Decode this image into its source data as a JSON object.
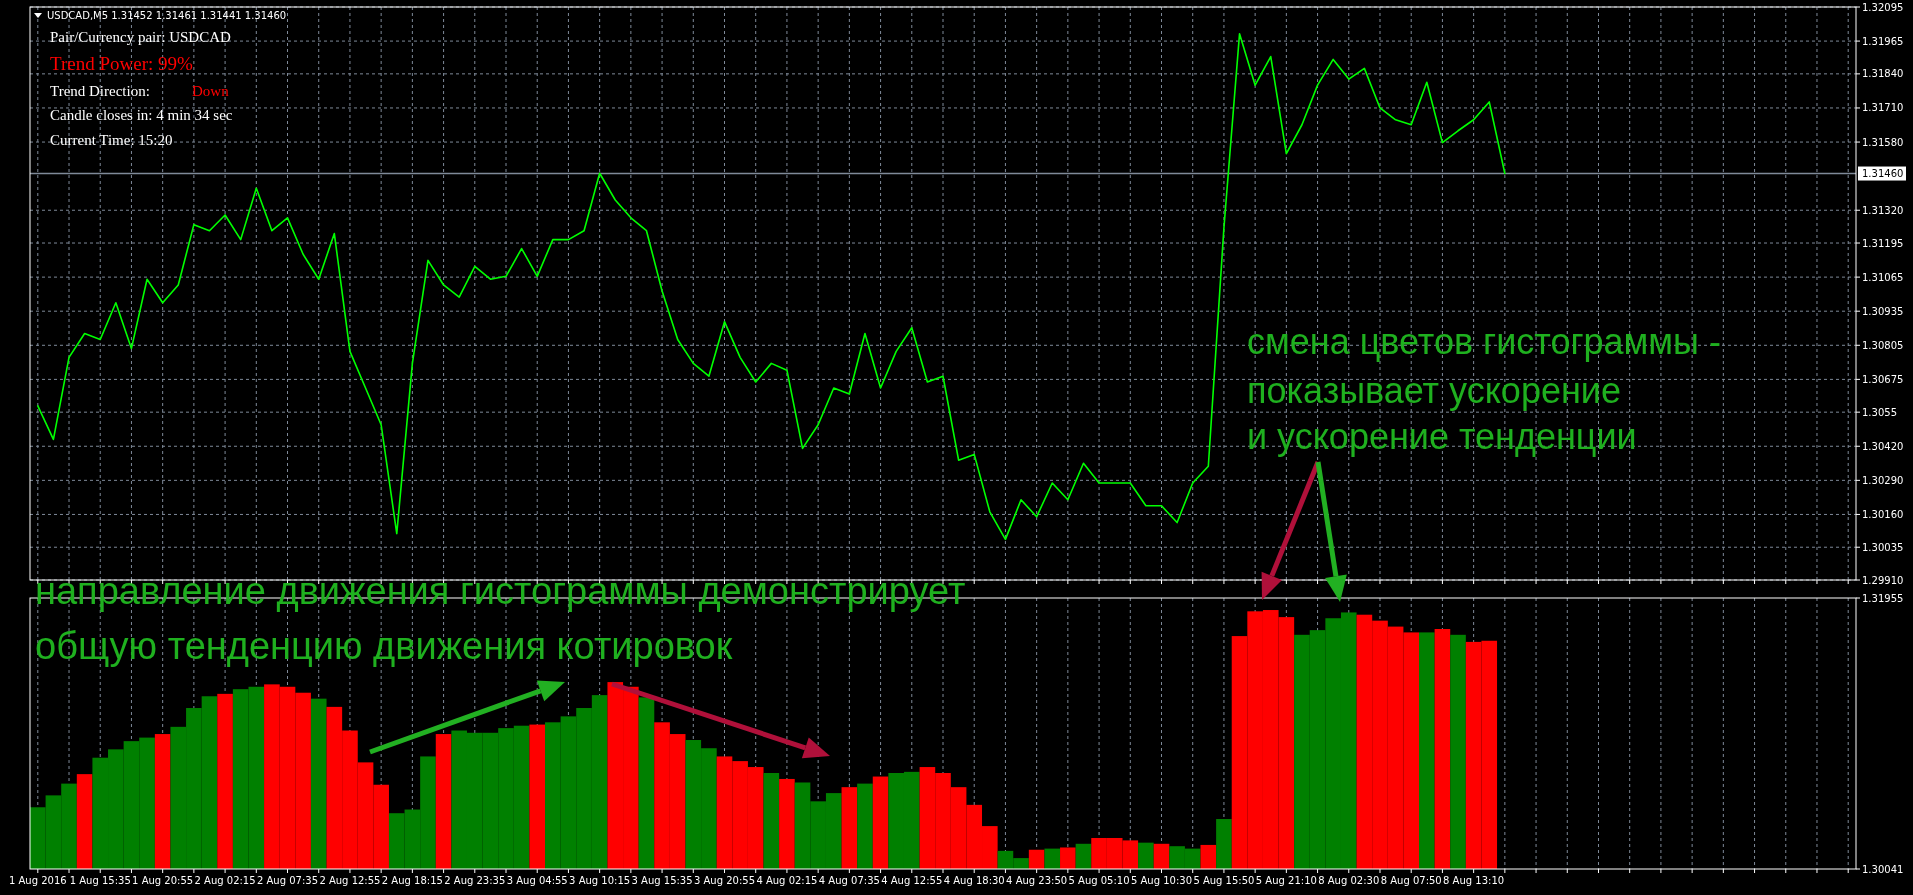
{
  "chart_data": [
    {
      "type": "line",
      "title": "USDCAD,M5  1.31452 1.31461 1.31441 1.31460",
      "annotations": [
        "Pair/Currency pair: USDCAD",
        "Trend Power: 99%",
        "Trend Direction:",
        "Down",
        "Candle closes in: 4 min 34 sec",
        "Current Time: 15:20",
        "направление движения гистограммы демонстрирует",
        "общую тенденцию движения котировок",
        "смена цветов гистограммы -",
        "показывает ускорение",
        "и ускорение тенденции"
      ],
      "categories": [
        null,
        null,
        null,
        null,
        null,
        null,
        null,
        null,
        null,
        null,
        null,
        null,
        null,
        null,
        null,
        null,
        null,
        null,
        null,
        null,
        null,
        null,
        null,
        null,
        null,
        null,
        null,
        null,
        null,
        null,
        null,
        null,
        null,
        null,
        null,
        null,
        null,
        null,
        null,
        null,
        null,
        null,
        null,
        null,
        null,
        null,
        null,
        null,
        null,
        null,
        null,
        null,
        null,
        null,
        null,
        null,
        null,
        null,
        null,
        null,
        null,
        null,
        null,
        null,
        null,
        null,
        null,
        null,
        null,
        null,
        null,
        null,
        null,
        null,
        null,
        null,
        null,
        null,
        null,
        null,
        null,
        null,
        null,
        null,
        null,
        null,
        null,
        null,
        null,
        null,
        null,
        null,
        null,
        null,
        null,
        null,
        null,
        null,
        null,
        null,
        null,
        null,
        null,
        null,
        null,
        null,
        null,
        null,
        null,
        null,
        null,
        null,
        null,
        null,
        null,
        null,
        null
      ],
      "series": [
        {
          "color": "#00ff00",
          "values": [
            1.30574,
            1.30446,
            1.30759,
            1.3085,
            1.30827,
            1.30967,
            1.30793,
            1.31057,
            1.30967,
            1.31035,
            1.31265,
            1.31242,
            1.31302,
            1.31208,
            1.31404,
            1.31242,
            1.31291,
            1.31152,
            1.31057,
            1.31231,
            1.30782,
            1.30642,
            1.30502,
            1.30087,
            1.30736,
            1.31129,
            1.31035,
            1.30989,
            1.31106,
            1.31057,
            1.31068,
            1.31174,
            1.31068,
            1.31208,
            1.31208,
            1.31242,
            1.31461,
            1.31359,
            1.31291,
            1.31242,
            1.31012,
            1.30827,
            1.30736,
            1.30687,
            1.30895,
            1.30759,
            1.30665,
            1.30736,
            1.3071,
            1.30412,
            1.30502,
            1.30642,
            1.30619,
            1.3085,
            1.30642,
            1.30782,
            1.30872,
            1.30665,
            1.30687,
            1.30367,
            1.30389,
            1.3017,
            1.30065,
            1.30216,
            1.30151,
            1.3028,
            1.30216,
            1.30355,
            1.3028,
            1.3028,
            1.3028,
            1.30193,
            1.30193,
            1.30129,
            1.3028,
            1.30344,
            1.31253,
            1.31993,
            1.31797,
            1.31906,
            1.31536,
            1.31646,
            1.31797,
            1.31895,
            1.3182,
            1.31861,
            1.3171,
            1.31665,
            1.31646,
            1.31808,
            1.31578,
            1.31623,
            1.31665,
            1.31733,
            1.3146,
            null,
            null,
            null,
            null,
            null,
            null,
            null,
            null,
            null,
            null,
            null,
            null,
            null,
            null,
            null,
            null,
            null,
            null,
            null,
            null,
            null,
            null
          ]
        }
      ],
      "ylim": [
        1.2991,
        1.32095
      ],
      "yticks": [
        1.32095,
        1.31965,
        {
          "value": 1.3184,
          "label": "1.31840"
        },
        {
          "value": 1.3171,
          "label": "1.31710"
        },
        {
          "value": 1.3158,
          "label": "1.31580"
        },
        {
          "value": 1.3132,
          "label": "1.31320"
        },
        1.31195,
        1.31065,
        1.30935,
        1.30805,
        1.30675,
        1.3055,
        {
          "value": 1.3042,
          "label": "1.30420"
        },
        {
          "value": 1.3029,
          "label": "1.30290"
        },
        {
          "value": 1.3016,
          "label": "1.30160"
        },
        1.30035,
        {
          "value": 1.2991,
          "label": "1.29910"
        }
      ],
      "ref_lines": [
        {
          "axis": "y",
          "value": 1.3146,
          "label": "1.31460",
          "color": "#7f8a99"
        }
      ],
      "tick_labels": "y",
      "grid": true
    },
    {
      "type": "bar",
      "categories": [
        "1 Aug 2016",
        null,
        null,
        null,
        "1 Aug 15:35",
        null,
        null,
        null,
        "1 Aug 20:55",
        null,
        null,
        null,
        "2 Aug 02:15",
        null,
        null,
        null,
        "2 Aug 07:35",
        null,
        null,
        null,
        "2 Aug 12:55",
        null,
        null,
        null,
        "2 Aug 18:15",
        null,
        null,
        null,
        "2 Aug 23:35",
        null,
        null,
        null,
        "3 Aug 04:55",
        null,
        null,
        null,
        "3 Aug 10:15",
        null,
        null,
        null,
        "3 Aug 15:35",
        null,
        null,
        null,
        "3 Aug 20:55",
        null,
        null,
        null,
        "4 Aug 02:15",
        null,
        null,
        null,
        "4 Aug 07:35",
        null,
        null,
        null,
        "4 Aug 12:55",
        null,
        null,
        null,
        "4 Aug 18:30",
        null,
        null,
        null,
        "4 Aug 23:50",
        null,
        null,
        null,
        "5 Aug 05:10",
        null,
        null,
        null,
        "5 Aug 10:30",
        null,
        null,
        null,
        "5 Aug 15:50",
        null,
        null,
        null,
        "5 Aug 21:10",
        null,
        null,
        null,
        "8 Aug 02:30",
        null,
        null,
        null,
        "8 Aug 07:50",
        null,
        null,
        null,
        "8 Aug 13:10",
        null,
        null,
        null,
        null,
        null,
        null,
        null,
        null,
        null,
        null,
        null,
        null,
        null,
        null,
        null,
        null,
        null,
        null,
        null,
        null,
        null,
        null,
        null,
        null
      ],
      "values": [
        1.30477,
        1.30561,
        1.30644,
        1.30711,
        1.30827,
        1.30886,
        1.30944,
        1.30969,
        1.30994,
        1.31045,
        1.31178,
        1.31261,
        1.31278,
        1.31311,
        1.31328,
        1.31345,
        1.31328,
        1.31286,
        1.31244,
        1.31186,
        1.31019,
        1.30794,
        1.30636,
        1.30435,
        1.30461,
        1.30836,
        1.30994,
        1.31019,
        1.31003,
        1.31003,
        1.31036,
        1.31053,
        1.31061,
        1.31077,
        1.31119,
        1.31178,
        1.31269,
        1.31361,
        1.31328,
        1.31253,
        1.31077,
        1.30994,
        1.30952,
        1.30894,
        1.30836,
        1.30803,
        1.30761,
        1.30719,
        1.30677,
        1.30652,
        1.30519,
        1.30577,
        1.30619,
        1.30644,
        1.30694,
        1.30719,
        1.30727,
        1.30761,
        1.30719,
        1.30619,
        1.30494,
        1.30344,
        1.30169,
        1.30118,
        1.30177,
        1.30185,
        1.30193,
        1.30219,
        1.3026,
        1.3026,
        1.30243,
        1.30227,
        1.30219,
        1.30202,
        1.30185,
        1.30211,
        1.30394,
        1.31686,
        1.31861,
        1.3187,
        1.3182,
        1.31695,
        1.31728,
        1.31812,
        1.31853,
        1.31837,
        1.31795,
        1.31753,
        1.31712,
        1.31712,
        1.31736,
        1.31695,
        1.31645,
        1.31653,
        null,
        null,
        null,
        null,
        null,
        null,
        null,
        null,
        null,
        null,
        null,
        null,
        null,
        null,
        null,
        null,
        null,
        null,
        null,
        null,
        null,
        null,
        null
      ],
      "colors": [
        "#008000",
        "#008000",
        "#008000",
        "#ff0000",
        "#008000",
        "#008000",
        "#008000",
        "#008000",
        "#ff0000",
        "#008000",
        "#008000",
        "#008000",
        "#ff0000",
        "#008000",
        "#008000",
        "#ff0000",
        "#ff0000",
        "#ff0000",
        "#008000",
        "#ff0000",
        "#ff0000",
        "#ff0000",
        "#ff0000",
        "#008000",
        "#008000",
        "#008000",
        "#ff0000",
        "#008000",
        "#008000",
        "#008000",
        "#008000",
        "#008000",
        "#ff0000",
        "#008000",
        "#008000",
        "#008000",
        "#008000",
        "#ff0000",
        "#ff0000",
        "#008000",
        "#ff0000",
        "#ff0000",
        "#008000",
        "#008000",
        "#ff0000",
        "#ff0000",
        "#ff0000",
        "#008000",
        "#ff0000",
        "#008000",
        "#008000",
        "#008000",
        "#ff0000",
        "#008000",
        "#ff0000",
        "#008000",
        "#008000",
        "#ff0000",
        "#ff0000",
        "#ff0000",
        "#ff0000",
        "#ff0000",
        "#008000",
        "#008000",
        "#ff0000",
        "#008000",
        "#ff0000",
        "#008000",
        "#ff0000",
        "#ff0000",
        "#ff0000",
        "#008000",
        "#ff0000",
        "#008000",
        "#008000",
        "#ff0000",
        "#008000",
        "#ff0000",
        "#ff0000",
        "#ff0000",
        "#ff0000",
        "#008000",
        "#008000",
        "#008000",
        "#008000",
        "#ff0000",
        "#ff0000",
        "#ff0000",
        "#ff0000",
        "#008000",
        "#ff0000",
        "#008000",
        "#ff0000",
        "#ff0000",
        null,
        null,
        null,
        null,
        null,
        null,
        null,
        null,
        null,
        null,
        null,
        null,
        null,
        null,
        null,
        null,
        null,
        null,
        null,
        null,
        null,
        null,
        null
      ],
      "ylim": [
        1.30041,
        1.31955
      ],
      "yticks": [
        1.31955,
        1.30041
      ],
      "grid": "x"
    }
  ]
}
